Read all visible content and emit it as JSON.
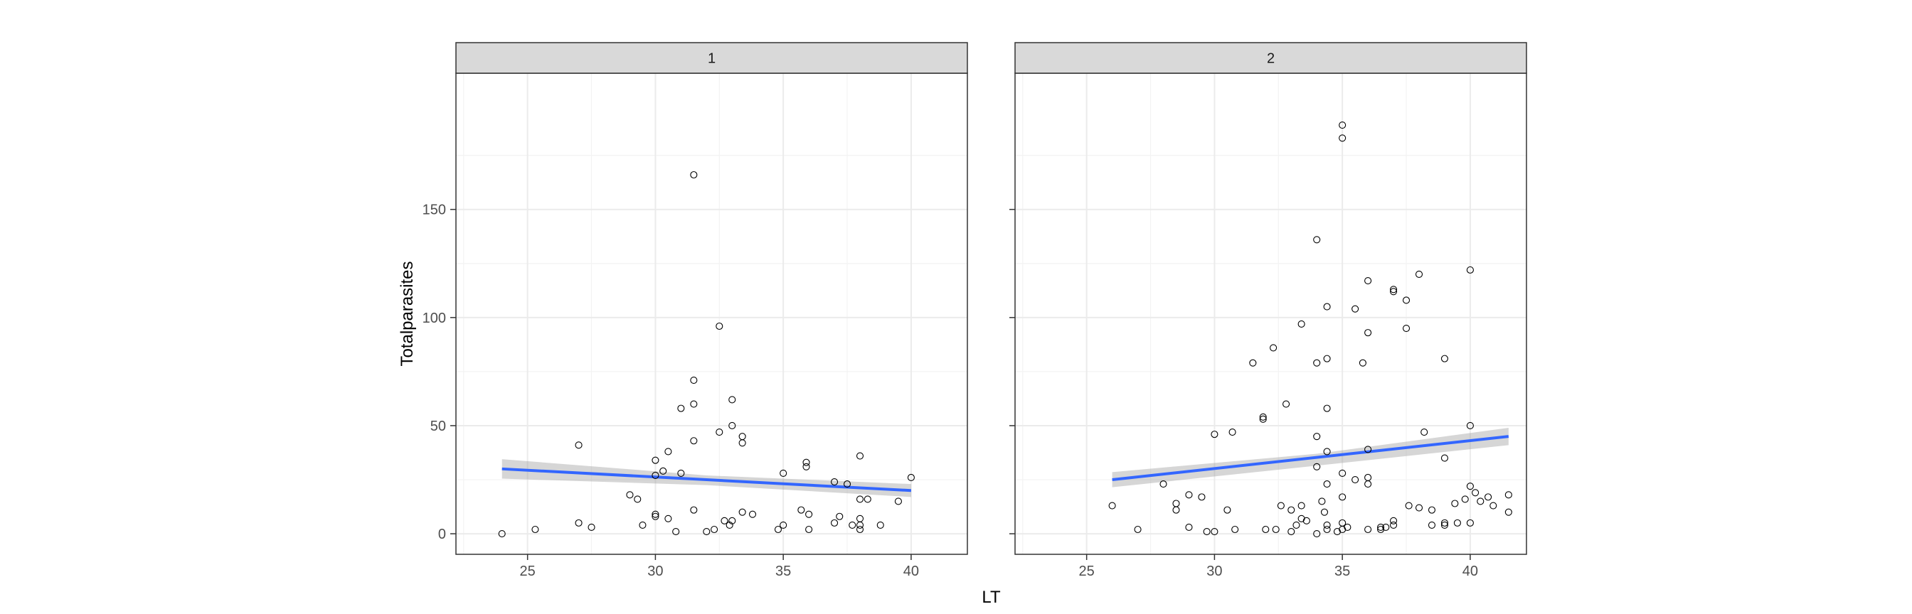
{
  "chart_data": {
    "type": "scatter",
    "xlabel": "LT",
    "ylabel": "Totalparasites",
    "xlim": [
      22.2,
      42.2
    ],
    "ylim": [
      -9.5,
      213
    ],
    "x_ticks": [
      25,
      30,
      35,
      40
    ],
    "y_ticks": [
      0,
      50,
      100,
      150
    ],
    "grid": true,
    "colors": {
      "fit_line": "#3366FF",
      "ci_band": "#999999",
      "strip_fill": "#D9D9D9",
      "panel_border": "#333333",
      "grid_major": "#EBEBEB",
      "point_stroke": "#000000"
    },
    "panels": [
      {
        "label": "1",
        "points": [
          [
            24.0,
            0
          ],
          [
            25.3,
            2
          ],
          [
            27.0,
            41
          ],
          [
            27.0,
            5
          ],
          [
            27.5,
            3
          ],
          [
            29.0,
            18
          ],
          [
            29.3,
            16
          ],
          [
            29.5,
            4
          ],
          [
            30.0,
            34
          ],
          [
            30.0,
            27
          ],
          [
            30.0,
            9
          ],
          [
            30.0,
            8
          ],
          [
            30.3,
            29
          ],
          [
            30.5,
            38
          ],
          [
            30.5,
            7
          ],
          [
            30.8,
            1
          ],
          [
            31.0,
            58
          ],
          [
            31.0,
            28
          ],
          [
            31.5,
            166
          ],
          [
            31.5,
            71
          ],
          [
            31.5,
            60
          ],
          [
            31.5,
            43
          ],
          [
            31.5,
            11
          ],
          [
            32.0,
            1
          ],
          [
            32.3,
            2
          ],
          [
            32.5,
            96
          ],
          [
            32.5,
            47
          ],
          [
            32.7,
            6
          ],
          [
            32.9,
            4
          ],
          [
            33.0,
            62
          ],
          [
            33.0,
            50
          ],
          [
            33.0,
            6
          ],
          [
            33.4,
            45
          ],
          [
            33.4,
            42
          ],
          [
            33.4,
            10
          ],
          [
            33.8,
            9
          ],
          [
            34.8,
            2
          ],
          [
            35.0,
            28
          ],
          [
            35.0,
            4
          ],
          [
            35.7,
            11
          ],
          [
            35.9,
            33
          ],
          [
            35.9,
            31
          ],
          [
            36.0,
            9
          ],
          [
            36.0,
            2
          ],
          [
            37.0,
            24
          ],
          [
            37.0,
            5
          ],
          [
            37.2,
            8
          ],
          [
            37.5,
            23
          ],
          [
            37.7,
            4
          ],
          [
            38.0,
            36
          ],
          [
            38.0,
            16
          ],
          [
            38.0,
            7
          ],
          [
            38.0,
            4
          ],
          [
            38.0,
            2
          ],
          [
            38.3,
            16
          ],
          [
            38.8,
            4
          ],
          [
            39.5,
            15
          ],
          [
            40.0,
            26
          ]
        ],
        "fit": {
          "x": [
            24.0,
            40.0
          ],
          "y": [
            30.0,
            20.0
          ]
        },
        "ci": {
          "x": [
            24.0,
            32.0,
            40.0
          ],
          "upper": [
            34.5,
            27.0,
            23.0
          ],
          "lower": [
            25.5,
            22.5,
            17.0
          ]
        }
      },
      {
        "label": "2",
        "points": [
          [
            26.0,
            13
          ],
          [
            27.0,
            2
          ],
          [
            28.0,
            23
          ],
          [
            28.5,
            14
          ],
          [
            28.5,
            11
          ],
          [
            29.0,
            18
          ],
          [
            29.0,
            3
          ],
          [
            29.5,
            17
          ],
          [
            29.7,
            1
          ],
          [
            30.0,
            46
          ],
          [
            30.0,
            1
          ],
          [
            30.5,
            11
          ],
          [
            30.7,
            47
          ],
          [
            30.8,
            2
          ],
          [
            31.5,
            79
          ],
          [
            31.9,
            54
          ],
          [
            31.9,
            53
          ],
          [
            32.0,
            2
          ],
          [
            32.3,
            86
          ],
          [
            32.4,
            2
          ],
          [
            32.6,
            13
          ],
          [
            32.8,
            60
          ],
          [
            33.0,
            11
          ],
          [
            33.0,
            1
          ],
          [
            33.2,
            4
          ],
          [
            33.4,
            97
          ],
          [
            33.4,
            13
          ],
          [
            33.4,
            7
          ],
          [
            33.6,
            6
          ],
          [
            34.0,
            136
          ],
          [
            34.0,
            79
          ],
          [
            34.0,
            45
          ],
          [
            34.0,
            31
          ],
          [
            34.0,
            0
          ],
          [
            34.2,
            15
          ],
          [
            34.3,
            10
          ],
          [
            34.4,
            105
          ],
          [
            34.4,
            81
          ],
          [
            34.4,
            58
          ],
          [
            34.4,
            38
          ],
          [
            34.4,
            23
          ],
          [
            34.4,
            4
          ],
          [
            34.4,
            2
          ],
          [
            34.8,
            1
          ],
          [
            35.0,
            189
          ],
          [
            35.0,
            183
          ],
          [
            35.0,
            28
          ],
          [
            35.0,
            17
          ],
          [
            35.0,
            5
          ],
          [
            35.0,
            2
          ],
          [
            35.2,
            3
          ],
          [
            35.5,
            104
          ],
          [
            35.5,
            25
          ],
          [
            35.8,
            79
          ],
          [
            36.0,
            117
          ],
          [
            36.0,
            93
          ],
          [
            36.0,
            39
          ],
          [
            36.0,
            26
          ],
          [
            36.0,
            23
          ],
          [
            36.0,
            2
          ],
          [
            36.5,
            3
          ],
          [
            36.5,
            2
          ],
          [
            36.7,
            3
          ],
          [
            37.0,
            113
          ],
          [
            37.0,
            112
          ],
          [
            37.0,
            6
          ],
          [
            37.0,
            4
          ],
          [
            37.5,
            108
          ],
          [
            37.5,
            95
          ],
          [
            37.6,
            13
          ],
          [
            38.0,
            120
          ],
          [
            38.0,
            12
          ],
          [
            38.2,
            47
          ],
          [
            38.5,
            11
          ],
          [
            38.5,
            4
          ],
          [
            39.0,
            81
          ],
          [
            39.0,
            35
          ],
          [
            39.0,
            5
          ],
          [
            39.0,
            4
          ],
          [
            39.4,
            14
          ],
          [
            39.5,
            5
          ],
          [
            39.8,
            16
          ],
          [
            40.0,
            122
          ],
          [
            40.0,
            50
          ],
          [
            40.0,
            22
          ],
          [
            40.0,
            5
          ],
          [
            40.2,
            19
          ],
          [
            40.4,
            15
          ],
          [
            40.7,
            17
          ],
          [
            40.9,
            13
          ],
          [
            41.5,
            18
          ],
          [
            41.5,
            10
          ]
        ],
        "fit": {
          "x": [
            26.0,
            41.5
          ],
          "y": [
            25.0,
            45.0
          ]
        },
        "ci": {
          "x": [
            26.0,
            34.0,
            41.5
          ],
          "upper": [
            28.5,
            37.0,
            49.0
          ],
          "lower": [
            21.5,
            31.5,
            41.0
          ]
        }
      }
    ]
  }
}
